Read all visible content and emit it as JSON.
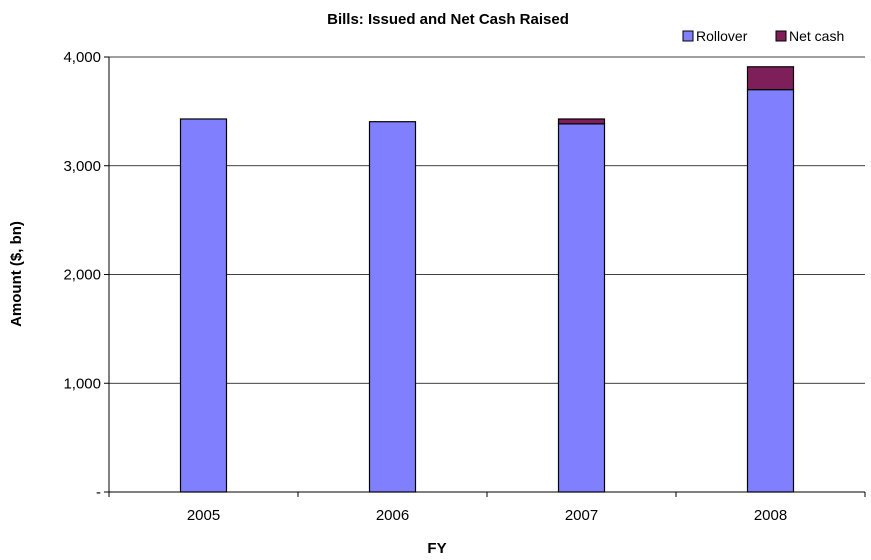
{
  "chart_data": {
    "type": "bar",
    "stacked": true,
    "title": "Bills: Issued and Net Cash Raised",
    "xlabel": "FY",
    "ylabel": "Amount ($, bn)",
    "categories": [
      "2005",
      "2006",
      "2007",
      "2008"
    ],
    "ylim": [
      0,
      4000
    ],
    "yticks": [
      0,
      1000,
      2000,
      3000,
      4000
    ],
    "ytick_labels": [
      "-",
      "1,000",
      "2,000",
      "3,000",
      "4,000"
    ],
    "grid": true,
    "legend_position": "top-right",
    "series": [
      {
        "name": "Rollover",
        "values": [
          3430,
          3405,
          3385,
          3700
        ],
        "color": "#8080ff"
      },
      {
        "name": "Net cash",
        "values": [
          0,
          0,
          45,
          210
        ],
        "color": "#7f1f5a"
      }
    ]
  }
}
